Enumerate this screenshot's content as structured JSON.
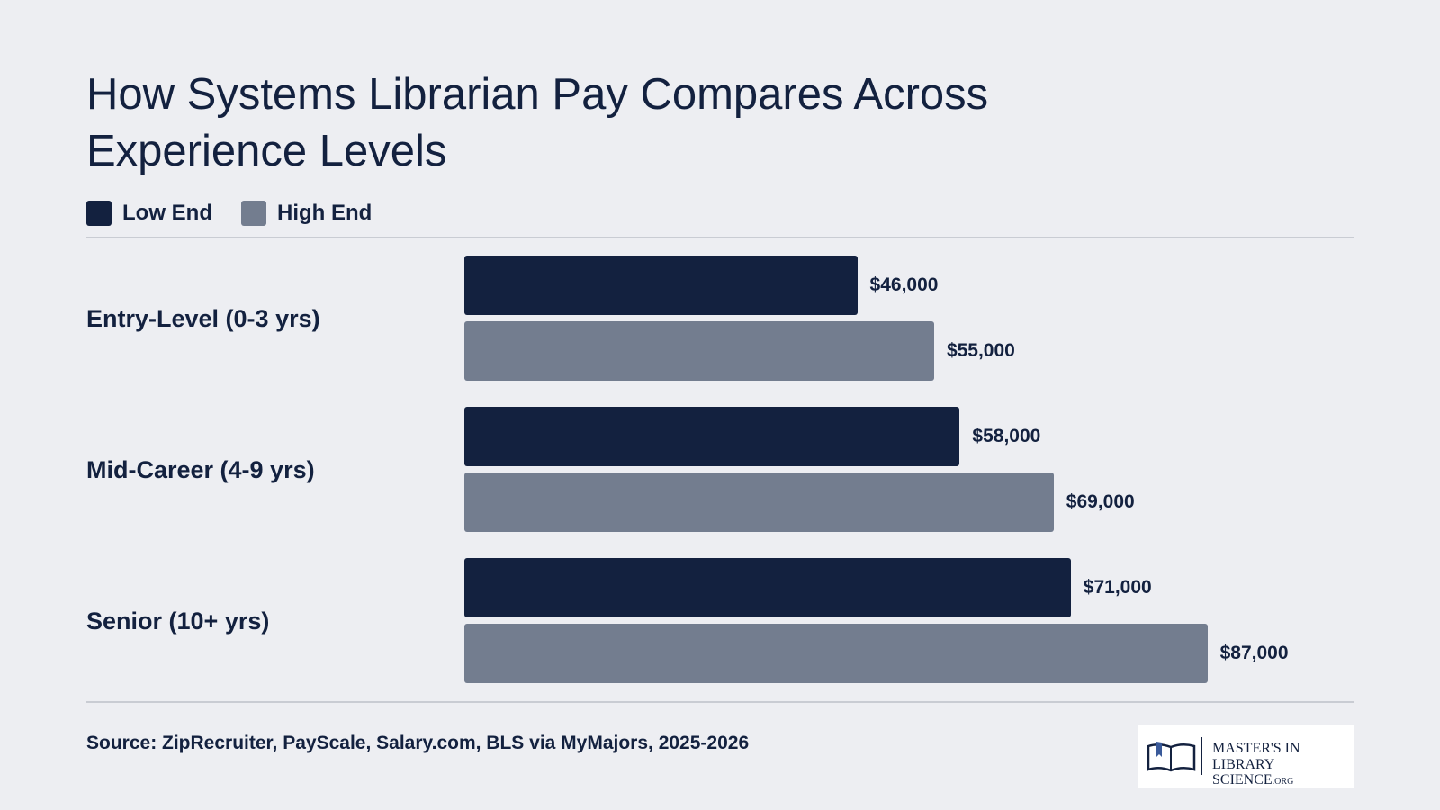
{
  "chart_data": {
    "type": "bar",
    "orientation": "horizontal",
    "title": "How Systems Librarian Pay Compares Across Experience Levels",
    "categories": [
      "Entry-Level (0-3 yrs)",
      "Mid-Career (4-9 yrs)",
      "Senior (10+ yrs)"
    ],
    "series": [
      {
        "name": "Low End",
        "color": "#13213f",
        "values": [
          46000,
          58000,
          71000
        ],
        "value_labels": [
          "$46,000",
          "$58,000",
          "$71,000"
        ]
      },
      {
        "name": "High End",
        "color": "#737d8f",
        "values": [
          55000,
          69000,
          87000
        ],
        "value_labels": [
          "$55,000",
          "$69,000",
          "$87,000"
        ]
      }
    ],
    "source": "Source: ZipRecruiter, PayScale, Salary.com, BLS via MyMajors, 2025-2026"
  },
  "logo": {
    "line1": "MASTER'S IN",
    "line2": "LIBRARY SCIENCE",
    "suffix": ".ORG"
  }
}
